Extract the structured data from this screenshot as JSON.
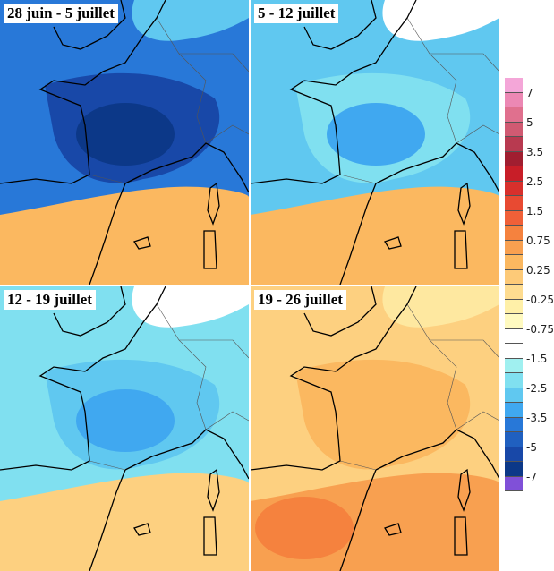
{
  "panels": [
    {
      "title": "28 juin - 5 juillet",
      "bg": "#2878d8",
      "land": "#1848a8",
      "core": "#0c3888",
      "south": "#fbb860",
      "north": "#60c8f0"
    },
    {
      "title": "5 - 12 juillet",
      "bg": "#60c8f0",
      "land": "#80e0f0",
      "core": "#40a8f0",
      "south": "#fbb860",
      "north": "#ffffff"
    },
    {
      "title": "12 - 19 juillet",
      "bg": "#80e0f0",
      "land": "#60c8f0",
      "core": "#40a8f0",
      "south": "#fdd080",
      "north": "#ffffff"
    },
    {
      "title": "19 - 26 juillet",
      "bg": "#fdd080",
      "land": "#fbb860",
      "core": "#f5823e",
      "south": "#f8a050",
      "north": "#fee8a0"
    }
  ],
  "legend": {
    "colors": [
      "#f4a6d8",
      "#ec88b4",
      "#e0708e",
      "#d05a72",
      "#b83a50",
      "#a01e30",
      "#c81e28",
      "#d8302c",
      "#e84a32",
      "#f06038",
      "#f5823e",
      "#f8a050",
      "#fbb860",
      "#fdca78",
      "#fedc90",
      "#fff0a8",
      "#fffac0",
      "#ffffff",
      "#ffffff",
      "#a0f0f0",
      "#80e0f0",
      "#60c8f0",
      "#40a8f0",
      "#2878d8",
      "#2060c0",
      "#1848a8",
      "#0c3888",
      "#8050d8"
    ],
    "labels": [
      "7",
      "5",
      "3.5",
      "2.5",
      "1.5",
      "0.75",
      "0.25",
      "-0.25",
      "-0.75",
      "-1.5",
      "-2.5",
      "-3.5",
      "-5",
      "-7"
    ]
  }
}
